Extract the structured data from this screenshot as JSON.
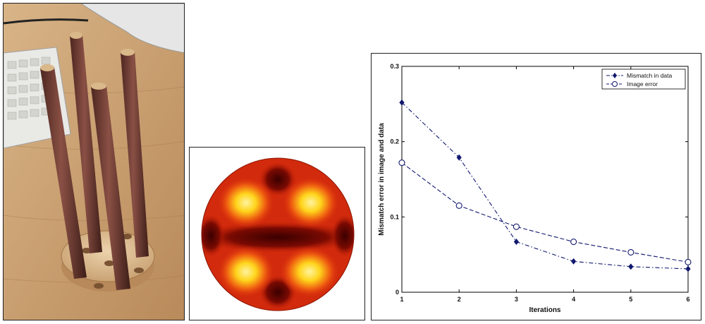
{
  "chart_data": {
    "type": "line",
    "title": "",
    "xlabel": "Iterations",
    "ylabel": "Mismatch error in image and  data",
    "x": [
      1,
      2,
      3,
      4,
      5,
      6
    ],
    "xlim": [
      1,
      6
    ],
    "ylim": [
      0,
      0.3
    ],
    "xticks": [
      "1",
      "2",
      "3",
      "4",
      "5",
      "6"
    ],
    "yticks": [
      "0",
      "0.1",
      "0.2",
      "0.3"
    ],
    "grid": false,
    "legend_position": "top-right",
    "series": [
      {
        "name": "Mismatch in data",
        "values": [
          0.252,
          0.179,
          0.067,
          0.041,
          0.034,
          0.031
        ],
        "marker": "filled-diamond",
        "line_style": "dash-dot",
        "color": "#10186e"
      },
      {
        "name": "Image error",
        "values": [
          0.172,
          0.115,
          0.087,
          0.067,
          0.053,
          0.04
        ],
        "marker": "open-circle",
        "line_style": "dashed",
        "color": "#10186e"
      }
    ]
  },
  "colors": {
    "map_hot": "#ffee44",
    "map_mid": "#d83010",
    "map_dark": "#3a0000",
    "wood": "#c9a273",
    "rod": "#6e3d33"
  }
}
